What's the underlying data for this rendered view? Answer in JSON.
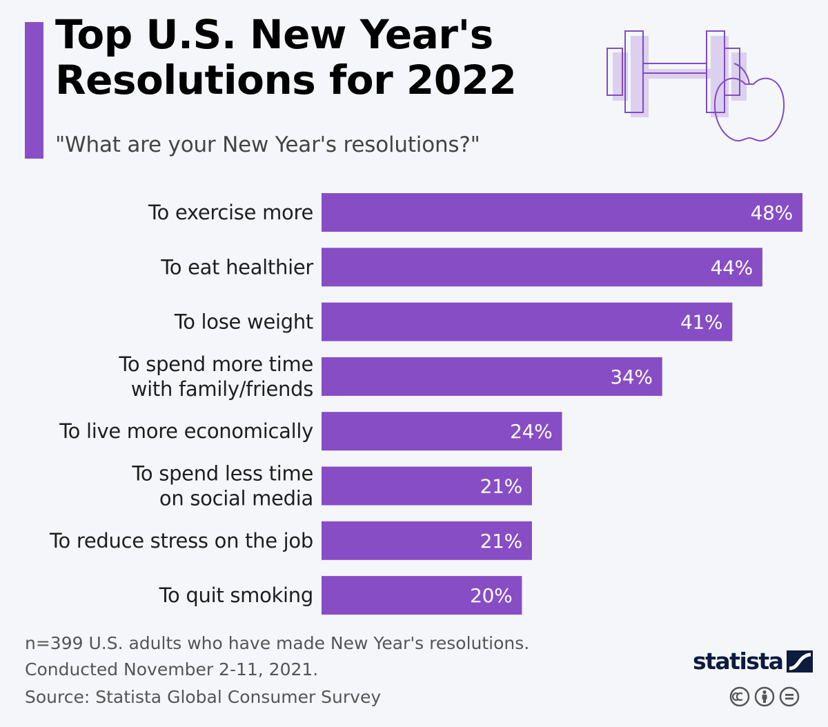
{
  "header": {
    "title_line1": "Top U.S. New Year's",
    "title_line2": "Resolutions for 2022",
    "subtitle": "\"What are your New Year's resolutions?\""
  },
  "chart_data": {
    "type": "bar",
    "orientation": "horizontal",
    "title": "Top U.S. New Year's Resolutions for 2022",
    "subtitle": "\"What are your New Year's resolutions?\"",
    "categories": [
      [
        "To exercise more"
      ],
      [
        "To eat healthier"
      ],
      [
        "To lose weight"
      ],
      [
        "To spend more time",
        "with family/friends"
      ],
      [
        "To live more economically"
      ],
      [
        "To spend less time",
        "on social media"
      ],
      [
        "To reduce stress on the job"
      ],
      [
        "To quit smoking"
      ]
    ],
    "values": [
      48,
      44,
      41,
      34,
      24,
      21,
      21,
      20
    ],
    "value_labels": [
      "48%",
      "44%",
      "41%",
      "34%",
      "24%",
      "21%",
      "21%",
      "20%"
    ],
    "unit": "%",
    "xlim": [
      0,
      48
    ],
    "color": "#874dc5"
  },
  "footer": {
    "note_line1": "n=399 U.S. adults who have made New Year's resolutions.",
    "note_line2": "Conducted November 2-11, 2021.",
    "source": "Source: Statista Global Consumer Survey",
    "brand": "statista",
    "license_icons": [
      "cc-icon",
      "attribution-icon",
      "no-derivatives-icon"
    ]
  }
}
